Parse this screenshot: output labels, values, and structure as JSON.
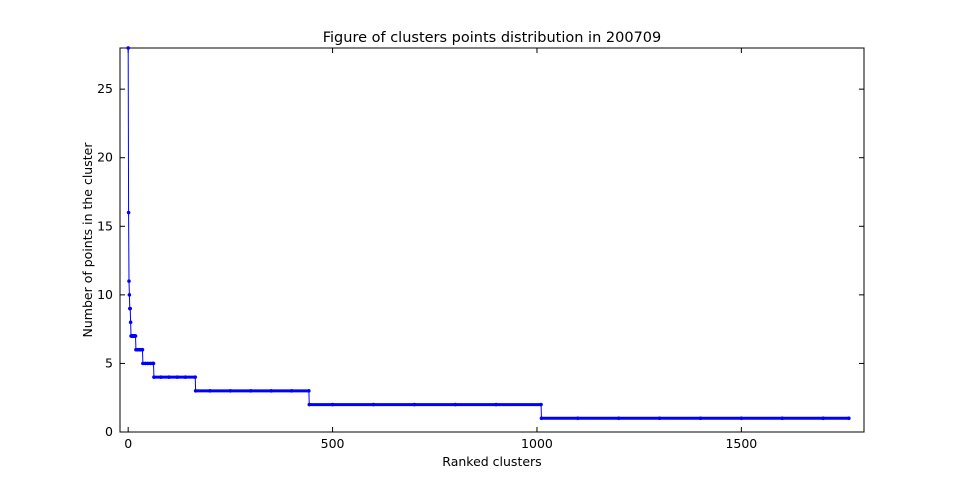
{
  "chart_data": {
    "type": "line",
    "title": "Figure of clusters points distribution in 200709",
    "xlabel": "Ranked clusters",
    "ylabel": "Number of points in the cluster",
    "xlim": [
      -20,
      1800
    ],
    "ylim": [
      0,
      28
    ],
    "xticks": [
      0,
      500,
      1000,
      1500
    ],
    "yticks": [
      0,
      5,
      10,
      15,
      20,
      25
    ],
    "grid": false,
    "legend": "none",
    "marker": "dot",
    "series": [
      {
        "color": "#0000ff",
        "points": [
          [
            0,
            28
          ],
          [
            1,
            16
          ],
          [
            2,
            11
          ],
          [
            3,
            10
          ],
          [
            4,
            9
          ],
          [
            5,
            9
          ],
          [
            6,
            8
          ],
          [
            7,
            7
          ],
          [
            8,
            7
          ],
          [
            9,
            7
          ],
          [
            10,
            7
          ],
          [
            11,
            7
          ],
          [
            12,
            7
          ],
          [
            13,
            7
          ],
          [
            14,
            7
          ],
          [
            15,
            7
          ],
          [
            16,
            7
          ],
          [
            17,
            7
          ],
          [
            18,
            7
          ],
          [
            19,
            6
          ],
          [
            22,
            6
          ],
          [
            25,
            6
          ],
          [
            28,
            6
          ],
          [
            31,
            6
          ],
          [
            34,
            6
          ],
          [
            35,
            6
          ],
          [
            36,
            5
          ],
          [
            42,
            5
          ],
          [
            48,
            5
          ],
          [
            54,
            5
          ],
          [
            60,
            5
          ],
          [
            62,
            5
          ],
          [
            63,
            4
          ],
          [
            80,
            4
          ],
          [
            100,
            4
          ],
          [
            120,
            4
          ],
          [
            140,
            4
          ],
          [
            164,
            4
          ],
          [
            165,
            3
          ],
          [
            200,
            3
          ],
          [
            250,
            3
          ],
          [
            300,
            3
          ],
          [
            350,
            3
          ],
          [
            400,
            3
          ],
          [
            442,
            3
          ],
          [
            443,
            2
          ],
          [
            500,
            2
          ],
          [
            600,
            2
          ],
          [
            700,
            2
          ],
          [
            800,
            2
          ],
          [
            900,
            2
          ],
          [
            1010,
            2
          ],
          [
            1011,
            1
          ],
          [
            1100,
            1
          ],
          [
            1200,
            1
          ],
          [
            1300,
            1
          ],
          [
            1400,
            1
          ],
          [
            1500,
            1
          ],
          [
            1600,
            1
          ],
          [
            1700,
            1
          ],
          [
            1763,
            1
          ]
        ]
      }
    ]
  }
}
